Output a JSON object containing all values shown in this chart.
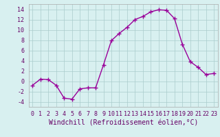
{
  "hours": [
    0,
    1,
    2,
    3,
    4,
    5,
    6,
    7,
    8,
    9,
    10,
    11,
    12,
    13,
    14,
    15,
    16,
    17,
    18,
    19,
    20,
    21,
    22,
    23
  ],
  "values": [
    -0.8,
    0.4,
    0.3,
    -0.8,
    -3.3,
    -3.5,
    -1.5,
    -1.3,
    -1.3,
    3.2,
    7.9,
    9.3,
    10.5,
    12.0,
    12.6,
    13.5,
    13.9,
    13.8,
    12.2,
    7.2,
    3.8,
    2.7,
    1.3,
    1.5
  ],
  "line_color": "#990099",
  "marker": "+",
  "marker_size": 4,
  "bg_color": "#d8f0f0",
  "grid_color": "#aacccc",
  "xlabel": "Windchill (Refroidissement éolien,°C)",
  "xlabel_fontsize": 7,
  "ylim": [
    -5,
    15
  ],
  "xlim": [
    -0.5,
    23.5
  ],
  "yticks": [
    -4,
    -2,
    0,
    2,
    4,
    6,
    8,
    10,
    12,
    14
  ],
  "xticks": [
    0,
    1,
    2,
    3,
    4,
    5,
    6,
    7,
    8,
    9,
    10,
    11,
    12,
    13,
    14,
    15,
    16,
    17,
    18,
    19,
    20,
    21,
    22,
    23
  ],
  "tick_fontsize": 6,
  "line_width": 1.0,
  "spine_color": "#aaaaaa",
  "tick_color": "#660066",
  "font_family": "monospace"
}
